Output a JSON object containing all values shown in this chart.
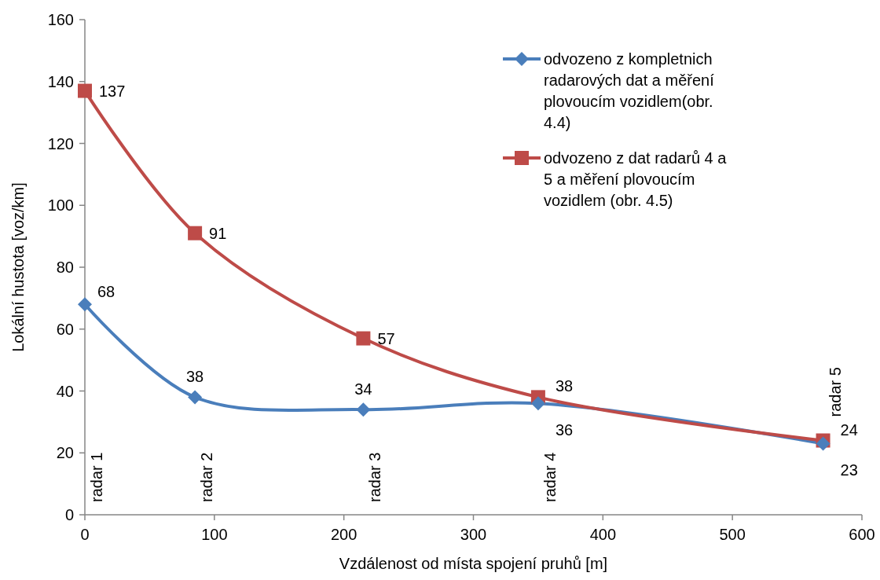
{
  "chart_data": {
    "type": "line",
    "xlabel": "Vzdálenost od místa spojení pruhů [m]",
    "ylabel": "Lokální hustota [voz/km]",
    "x": [
      0,
      85,
      215,
      350,
      570
    ],
    "series": [
      {
        "name": "odvozeno z kompletnich radarových dat a měření plovoucím vozidlem(obr. 4.4)",
        "color": "#4a7ebb",
        "marker": "diamond",
        "values": [
          68,
          38,
          34,
          36,
          23
        ]
      },
      {
        "name": "odvozeno z dat radarů 4 a 5 a měření plovoucím vozidlem (obr. 4.5)",
        "color": "#be4b48",
        "marker": "square",
        "values": [
          137,
          91,
          57,
          38,
          24
        ]
      }
    ],
    "xlim": [
      0,
      600
    ],
    "xticks": [
      0,
      100,
      200,
      300,
      400,
      500,
      600
    ],
    "ylim": [
      0,
      160
    ],
    "yticks": [
      0,
      20,
      40,
      60,
      80,
      100,
      120,
      140,
      160
    ],
    "data_labels": true,
    "legend": "top right",
    "grid": false,
    "annotations": [
      "radar 1",
      "radar 2",
      "radar 3",
      "radar 4",
      "radar 5"
    ]
  }
}
